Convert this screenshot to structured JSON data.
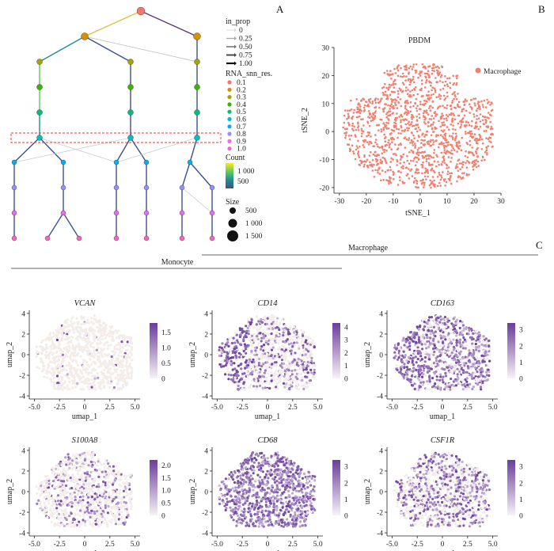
{
  "panels": {
    "a": "A",
    "b": "B",
    "c": "C"
  },
  "clustree": {
    "legend": {
      "in_prop_title": "in_prop",
      "in_prop_values": [
        "0",
        "0.25",
        "0.50",
        "0.75",
        "1.00"
      ],
      "res_title": "RNA_snn_res.",
      "res_values": [
        "0.1",
        "0.2",
        "0.3",
        "0.4",
        "0.5",
        "0.6",
        "0.7",
        "0.8",
        "0.9",
        "1.0"
      ],
      "res_colors": [
        "#f8766d",
        "#d89000",
        "#a3a500",
        "#39b600",
        "#00bf7d",
        "#00bfc4",
        "#00b0f6",
        "#9590ff",
        "#e76bf3",
        "#ff62bc"
      ],
      "count_title": "Count",
      "count_ticks": [
        "1 000",
        "500"
      ],
      "size_title": "Size",
      "size_values": [
        "500",
        "1 000",
        "1 500"
      ]
    }
  },
  "chart_data": [
    {
      "type": "scatter",
      "title": "PBDM",
      "xlabel": "tSNE_1",
      "ylabel": "tSNE_2",
      "xlim": [
        -32,
        30
      ],
      "ylim": [
        -22,
        30
      ],
      "xticks": [
        "-30",
        "-20",
        "-10",
        "0",
        "10",
        "20",
        "30"
      ],
      "yticks": [
        "30",
        "20",
        "10",
        "0",
        "-10",
        "-20"
      ],
      "legend": {
        "label": "Macrophage",
        "color": "#f08070",
        "position": "top-right"
      },
      "series": [
        {
          "name": "Macrophage",
          "approx_points": 1500,
          "x_range": [
            -29,
            27
          ],
          "y_range": [
            -20,
            24
          ]
        }
      ]
    },
    {
      "type": "scatter",
      "groups": {
        "top": "Macrophage",
        "left": "Monocyte"
      },
      "xlabel": "umap_1",
      "ylabel": "umap_2",
      "xticks": [
        "-5.0",
        "-2.5",
        "0",
        "2.5",
        "5.0"
      ],
      "yticks": [
        "4",
        "2",
        "0",
        "-2",
        "-4"
      ],
      "subplots": [
        {
          "gene": "VCAN",
          "colorbar_ticks": [
            "1.5",
            "1.0",
            "0.5",
            "0"
          ],
          "max": 1.8,
          "density": 0.05
        },
        {
          "gene": "CD14",
          "colorbar_ticks": [
            "4",
            "3",
            "2",
            "1",
            "0"
          ],
          "max": 4.3,
          "density": 0.45
        },
        {
          "gene": "CD163",
          "colorbar_ticks": [
            "3",
            "2",
            "1",
            "0"
          ],
          "max": 3.4,
          "density": 0.7
        },
        {
          "gene": "S100A8",
          "colorbar_ticks": [
            "2.0",
            "1.5",
            "1.0",
            "0.5",
            "0"
          ],
          "max": 2.2,
          "density": 0.3
        },
        {
          "gene": "CD68",
          "colorbar_ticks": [
            "3",
            "2",
            "1",
            "0"
          ],
          "max": 3.4,
          "density": 0.97
        },
        {
          "gene": "CSF1R",
          "colorbar_ticks": [
            "3",
            "2",
            "1",
            "0"
          ],
          "max": 3.4,
          "density": 0.55
        }
      ]
    }
  ]
}
